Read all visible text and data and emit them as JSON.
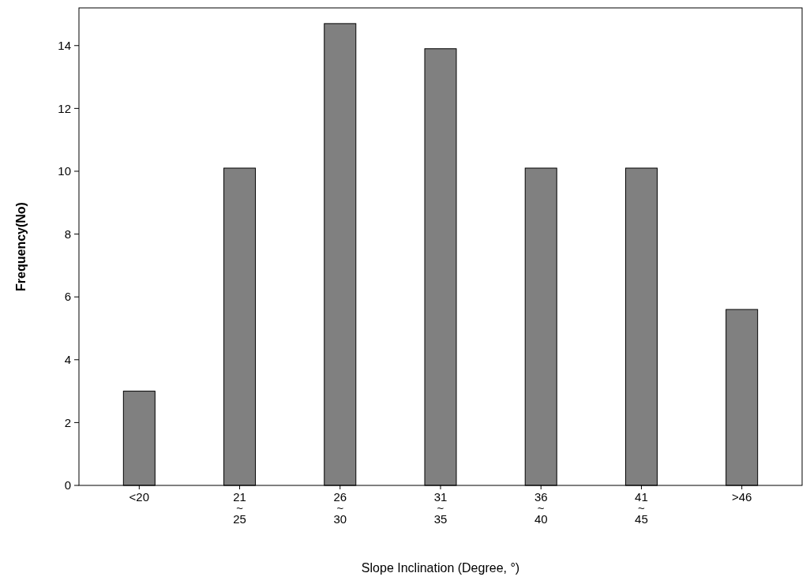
{
  "chart_data": {
    "type": "bar",
    "xlabel": "Slope Inclination (Degree, °)",
    "ylabel": "Frequency(No)",
    "categories": [
      "<20",
      "21\n~\n25",
      "26\n~\n30",
      "31\n~\n35",
      "36\n~\n40",
      "41\n~\n45",
      ">46"
    ],
    "values": [
      3,
      10.1,
      14.7,
      13.9,
      10.1,
      10.1,
      5.6
    ],
    "color": "#808080",
    "ylim": [
      0,
      15.2
    ],
    "yticks": [
      0,
      2,
      4,
      6,
      8,
      10,
      12,
      14
    ],
    "grid": false
  }
}
